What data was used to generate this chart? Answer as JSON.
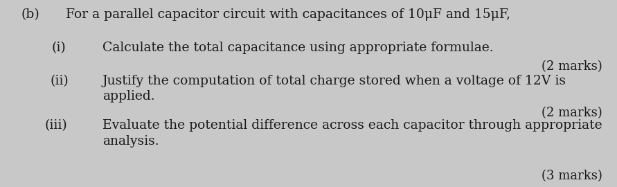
{
  "background_color": "#c8c8c8",
  "text_color": "#1a1a1a",
  "part_label": "(b)",
  "intro_line": "For a parallel capacitor circuit with capacitances of 10μF and 15μF,",
  "item_i_label": "(i)",
  "item_i_text": "Calculate the total capacitance using appropriate formulae.",
  "item_i_marks": "(2 marks)",
  "item_ii_label": "(ii)",
  "item_ii_line1": "Justify the computation of total charge stored when a voltage of 12V is",
  "item_ii_line2": "applied.",
  "item_ii_marks": "(2 marks)",
  "item_iii_label": "(iii)",
  "item_iii_line1": "Evaluate the potential difference across each capacitor through appropriate",
  "item_iii_line2": "analysis.",
  "item_iii_marks": "(3 marks)",
  "font_family": "serif",
  "fontsize_main": 13.5,
  "fontsize_marks": 13.0,
  "fig_width": 8.91,
  "fig_height": 2.7,
  "dpi": 100
}
